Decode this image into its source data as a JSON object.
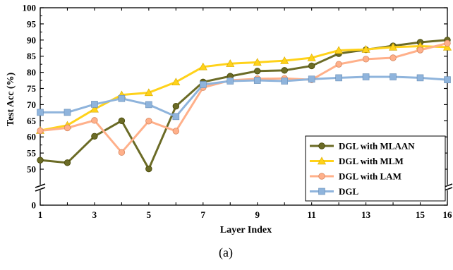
{
  "chart_data": {
    "type": "line",
    "xlabel": "Layer Index",
    "ylabel": "Test Acc (%)",
    "caption": "(a)",
    "x": [
      1,
      2,
      3,
      4,
      5,
      6,
      7,
      8,
      9,
      10,
      11,
      12,
      13,
      14,
      15,
      16
    ],
    "x_ticks": [
      "1",
      "3",
      "5",
      "7",
      "9",
      "11",
      "13",
      "15",
      "16"
    ],
    "y_ticks": [
      "0",
      "50",
      "55",
      "60",
      "65",
      "70",
      "75",
      "80",
      "85",
      "90",
      "95",
      "100"
    ],
    "y_axis_break": true,
    "xlim": [
      1,
      16
    ],
    "ylim": [
      0,
      100
    ],
    "legend_position": "bottom-right",
    "series": [
      {
        "name": "DGL with MLAAN",
        "color": "#6b6b26",
        "marker": "circle",
        "values": [
          52.8,
          52.0,
          60.2,
          65.0,
          50.1,
          69.5,
          77.0,
          78.8,
          80.4,
          80.6,
          82.0,
          85.8,
          87.0,
          88.2,
          89.3,
          90.0
        ]
      },
      {
        "name": "DGL with MLM",
        "color": "#ffd21a",
        "marker": "triangle",
        "values": [
          62.0,
          63.6,
          68.6,
          73.0,
          73.7,
          77.0,
          81.7,
          82.7,
          83.1,
          83.6,
          84.5,
          86.8,
          87.1,
          87.8,
          88.1,
          87.8
        ]
      },
      {
        "name": "DGL with LAM",
        "color": "#ffb08a",
        "marker": "circle",
        "values": [
          61.9,
          62.8,
          65.1,
          55.2,
          64.9,
          61.8,
          75.3,
          77.5,
          78.0,
          78.1,
          77.7,
          82.5,
          84.1,
          84.5,
          86.9,
          89.0
        ]
      },
      {
        "name": "DGL",
        "color": "#8fb4dc",
        "marker": "square",
        "values": [
          67.6,
          67.6,
          70.1,
          71.9,
          70.0,
          66.3,
          76.2,
          77.3,
          77.5,
          77.3,
          77.9,
          78.3,
          78.6,
          78.6,
          78.3,
          77.7
        ]
      }
    ]
  }
}
